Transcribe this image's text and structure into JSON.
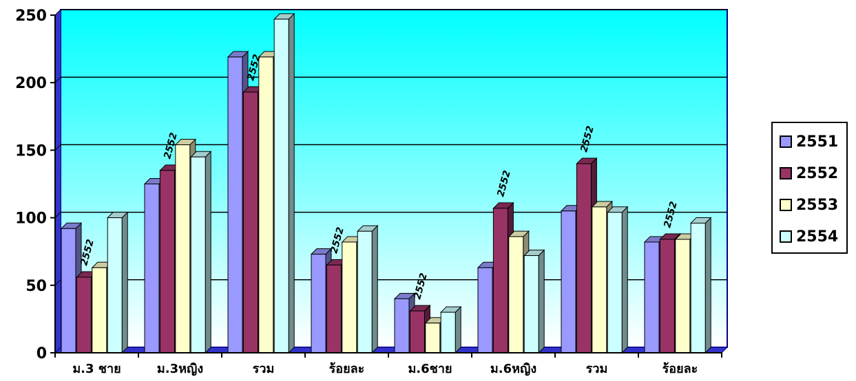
{
  "chart_data": {
    "type": "bar",
    "title": "",
    "xlabel": "",
    "ylabel": "",
    "categories": [
      "ม.3 ชาย",
      "ม.3หญิง",
      "รวม",
      "ร้อยละ",
      "ม.6ชาย",
      "ม.6หญิง",
      "รวม",
      "ร้อยละ"
    ],
    "series": [
      {
        "name": "2551",
        "values": [
          92,
          125,
          219,
          73,
          40,
          63,
          105,
          82
        ]
      },
      {
        "name": "2552",
        "values": [
          56,
          135,
          193,
          65,
          31,
          107,
          140,
          84
        ]
      },
      {
        "name": "2553",
        "values": [
          63,
          154,
          219,
          82,
          22,
          86,
          108,
          84
        ]
      },
      {
        "name": "2554",
        "values": [
          100,
          145,
          247,
          90,
          30,
          72,
          104,
          96
        ]
      }
    ],
    "data_labels": {
      "series": "2552",
      "text": "2552"
    },
    "ylim": [
      0,
      250
    ],
    "yticks": [
      0,
      50,
      100,
      150,
      200,
      250
    ],
    "grid": true,
    "legend_position": "right",
    "colors": {
      "series": [
        "#9999FF",
        "#993366",
        "#FFFFCC",
        "#CCFFFF"
      ],
      "background_top": "#00FFFF",
      "background_bottom": "#FFFFFF",
      "floor": "#3333CC"
    }
  }
}
